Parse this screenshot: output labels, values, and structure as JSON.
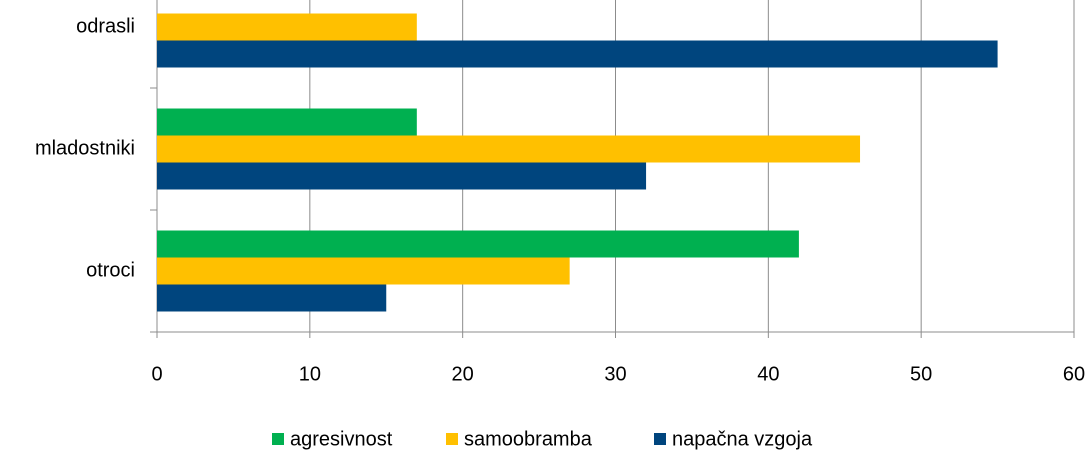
{
  "chart_data": {
    "type": "barh",
    "categories": [
      "odrasli",
      "mladostniki",
      "otroci"
    ],
    "series": [
      {
        "name": "agresivnost",
        "color": "#00b050",
        "values": [
          null,
          17,
          42
        ]
      },
      {
        "name": "samoobramba",
        "color": "#ffc000",
        "values": [
          17,
          46,
          27
        ]
      },
      {
        "name": "napačna vzgoja",
        "color": "#00457e",
        "values": [
          55,
          32,
          15
        ]
      }
    ],
    "xlim": [
      0,
      60
    ],
    "xticks": [
      0,
      10,
      20,
      30,
      40,
      50,
      60
    ],
    "grid": true,
    "legend": "bottom"
  }
}
